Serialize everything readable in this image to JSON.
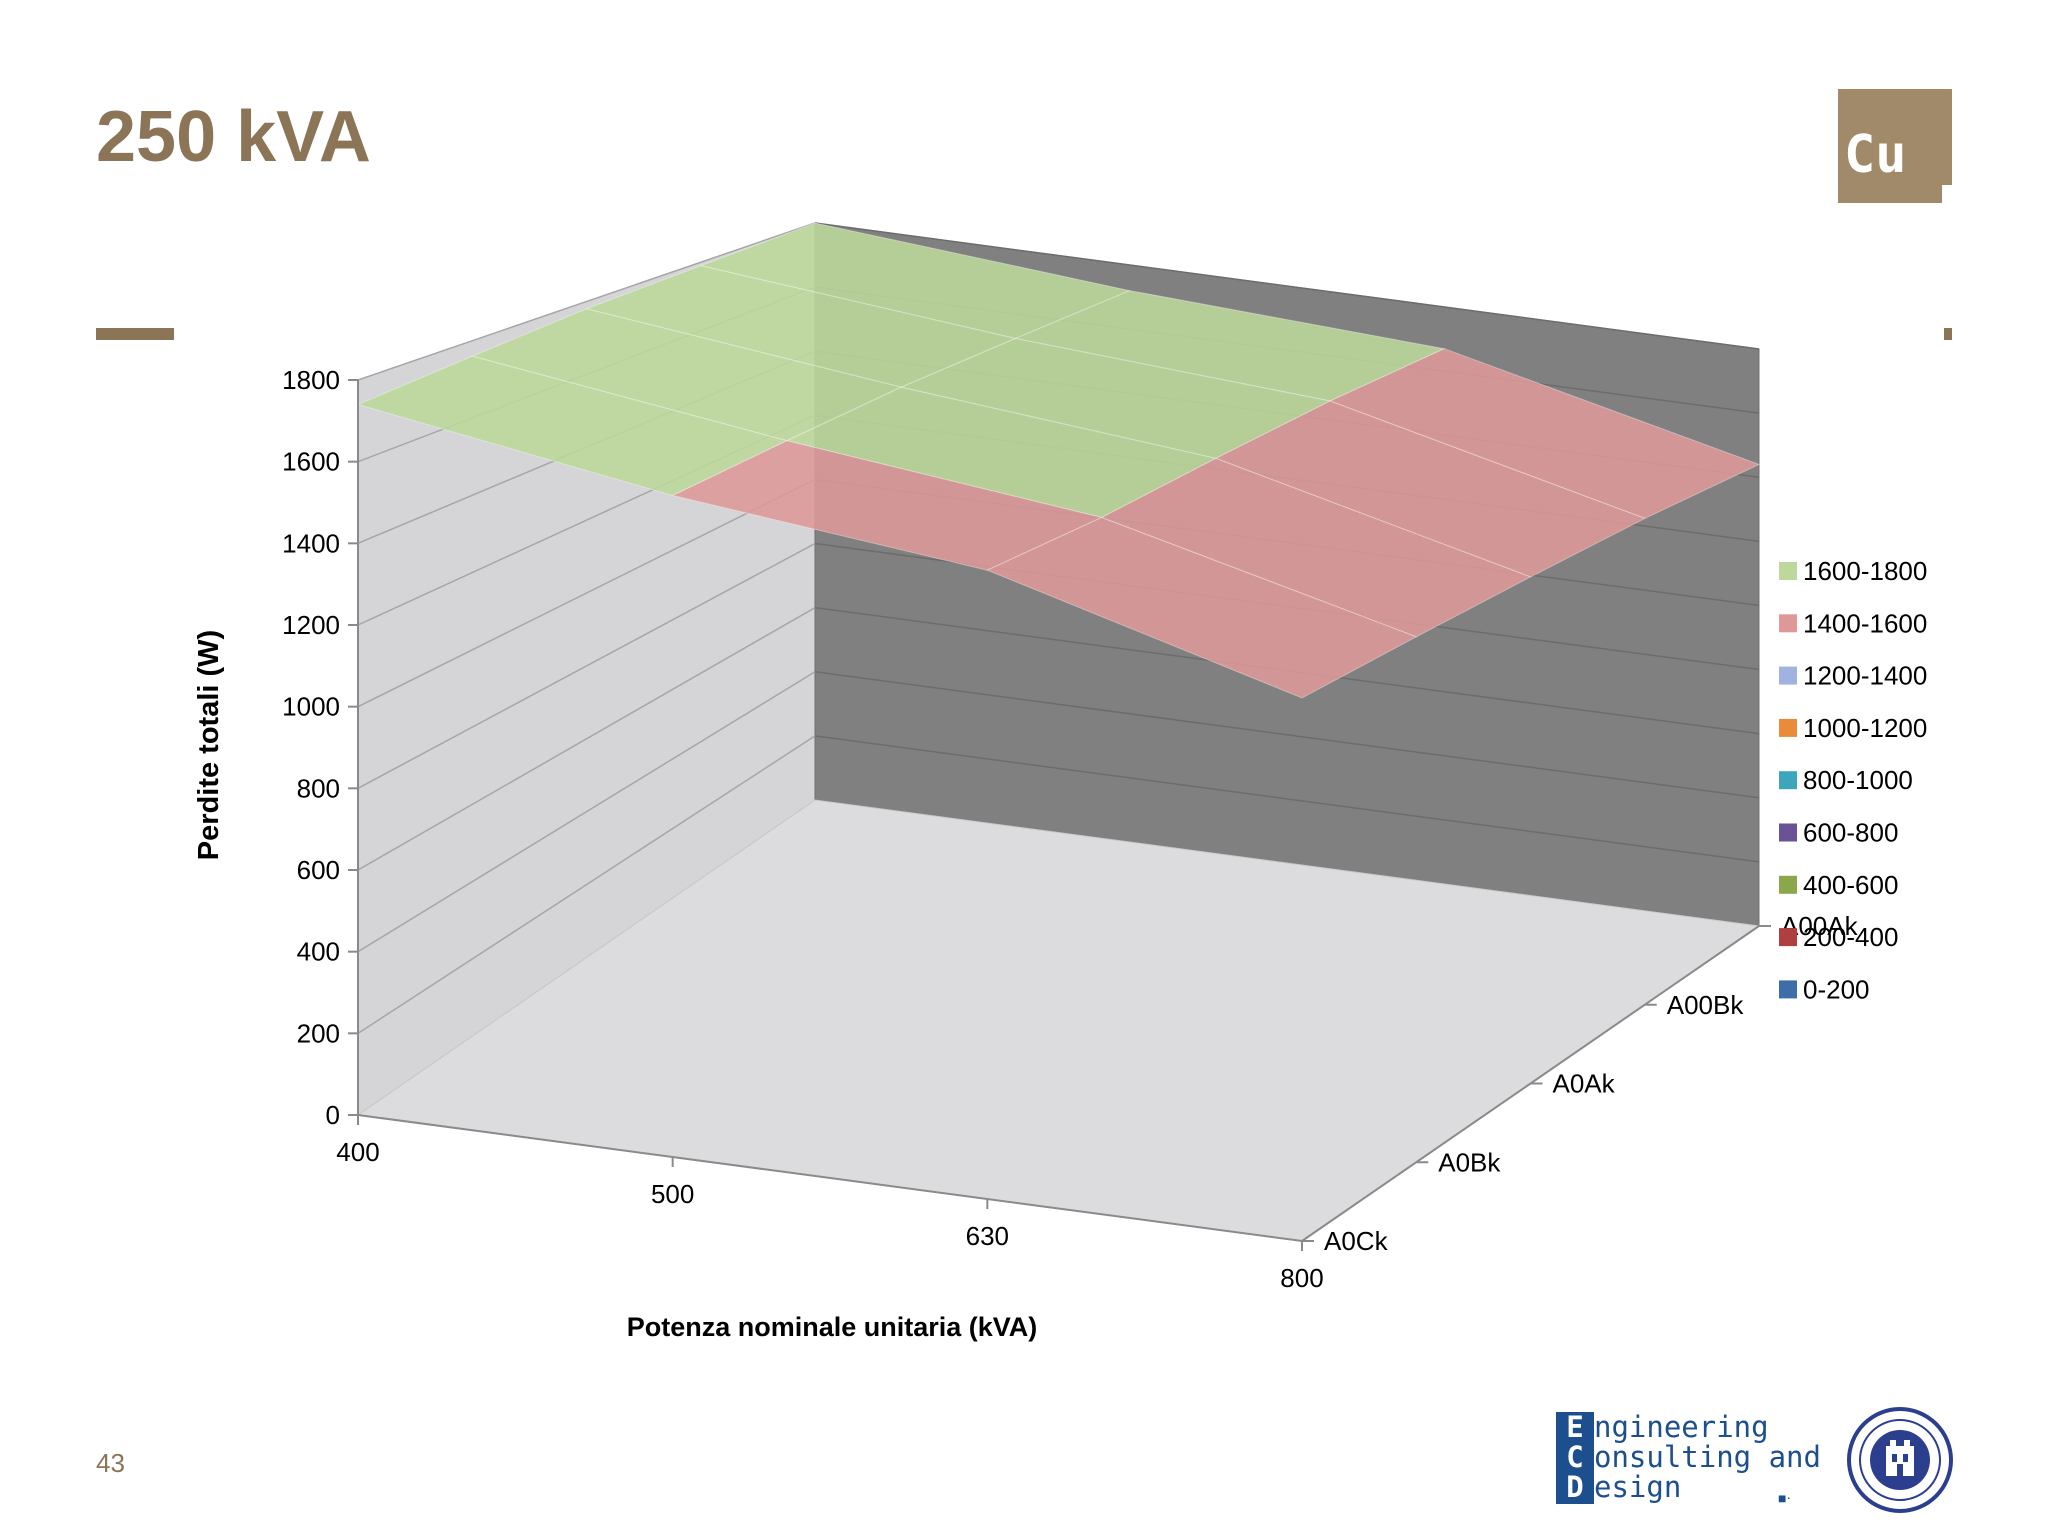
{
  "slide": {
    "title": "250 kVA",
    "badge": "Cu",
    "page_number": "43",
    "logo": {
      "line1": "ngineering",
      "line2": "onsulting and",
      "line3": "esign",
      "initials": [
        "E",
        "C",
        "D"
      ]
    }
  },
  "colors": {
    "accent": "#8c7456",
    "back_wall": "#808080",
    "side_wall": "#d5d5d7",
    "floor": "#dcdcde",
    "logo_blue": "#1d4f8f"
  },
  "chart_data": {
    "type": "surface",
    "title": "",
    "xlabel": "Potenza nominale  unitaria (kVA)",
    "ylabel": "Perdite totali (W)",
    "zlim": [
      0,
      1800
    ],
    "z_ticks": [
      "0",
      "200",
      "400",
      "600",
      "800",
      "1000",
      "1200",
      "1400",
      "1600",
      "1800"
    ],
    "x_categories": [
      "400",
      "500",
      "630",
      "800"
    ],
    "depth_categories": [
      "A0Ck",
      "A0Bk",
      "A0Ak",
      "A00Bk",
      "A00Ak"
    ],
    "grid": true,
    "legend_position": "right",
    "legend": [
      {
        "label": "1600-1800",
        "color": "#bcd89a"
      },
      {
        "label": "1400-1600",
        "color": "#de9898"
      },
      {
        "label": "1200-1400",
        "color": "#a0b2e0"
      },
      {
        "label": "1000-1200",
        "color": "#e98b3a"
      },
      {
        "label": "800-1000",
        "color": "#3ea6bc"
      },
      {
        "label": "600-800",
        "color": "#6a5296"
      },
      {
        "label": "400-600",
        "color": "#8aa84a"
      },
      {
        "label": "200-400",
        "color": "#b04040"
      },
      {
        "label": "0-200",
        "color": "#3e6ea8"
      }
    ],
    "values_by_x": [
      {
        "x": "400",
        "values": [
          1740,
          1760,
          1780,
          1790,
          1800
        ]
      },
      {
        "x": "500",
        "values": [
          1620,
          1650,
          1680,
          1700,
          1720
        ]
      },
      {
        "x": "630",
        "values": [
          1540,
          1560,
          1600,
          1640,
          1670
        ]
      },
      {
        "x": "800",
        "values": [
          1330,
          1360,
          1390,
          1420,
          1440
        ]
      }
    ]
  }
}
